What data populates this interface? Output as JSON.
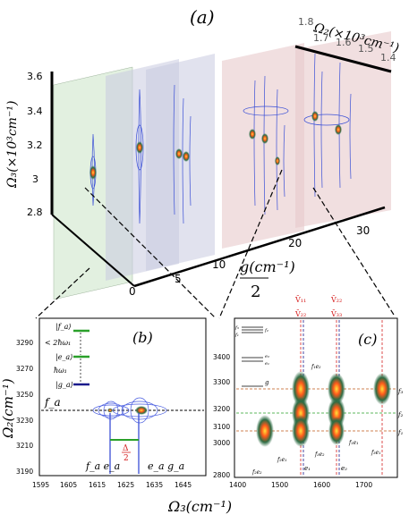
{
  "figure": {
    "panel_a": {
      "label": "(a)",
      "axes": {
        "omega2_label": "Ω₂(×10³cm⁻¹)",
        "omega3_label": "Ω₃(×10³cm⁻¹)",
        "g_label": "g(cm⁻¹)",
        "g_label_denominator": "2"
      },
      "omega2_ticks": [
        "1.8",
        "1.7",
        "1.6",
        "1.5",
        "1.4"
      ],
      "omega3_ticks": [
        "3.6",
        "3.4",
        "3.2",
        "3",
        "2.8"
      ],
      "g_ticks": [
        "0",
        "5",
        "10",
        "20",
        "30"
      ]
    },
    "panel_b": {
      "label": "(b)",
      "ylabel": "Ω₂(cm⁻¹)",
      "y_ticks": [
        "3290",
        "3270",
        "3250",
        "3230",
        "3210",
        "3190"
      ],
      "x_ticks": [
        "1595",
        "1605",
        "1615",
        "1625",
        "1635",
        "1645"
      ],
      "level_labels": [
        "|f_a⟩",
        "< 2ħω₁",
        "|e_a⟩",
        "ħω₁",
        "|g_a⟩"
      ],
      "peak_label": "f_a",
      "bottom_labels": [
        "f_a e_a",
        "e_a g_a"
      ],
      "delta_label": "Δ",
      "delta_den": "2"
    },
    "panel_c": {
      "label": "(c)",
      "x_ticks": [
        "1400",
        "1500",
        "1600",
        "1700"
      ],
      "y_ticks": [
        "3400",
        "3300",
        "3200",
        "3100",
        "3000",
        "2800"
      ],
      "top_labels": [
        "V̄₁₁",
        "V̄₂₂",
        "V̄₂₂",
        "V̄₃₃"
      ],
      "level_labels": [
        "f₃",
        "f₁",
        "f₂",
        "e₂",
        "e₁",
        "g"
      ],
      "right_labels": [
        "f₃",
        "f₂",
        "f₁"
      ],
      "annotations": [
        "f₁e₂",
        "f₂e₁",
        "f₃e₂",
        "f₃e₁",
        "f₁e₁",
        "f₂e₂",
        "e₁",
        "e₂"
      ]
    },
    "xlabel_bottom": "Ω₃(cm⁻¹)"
  }
}
